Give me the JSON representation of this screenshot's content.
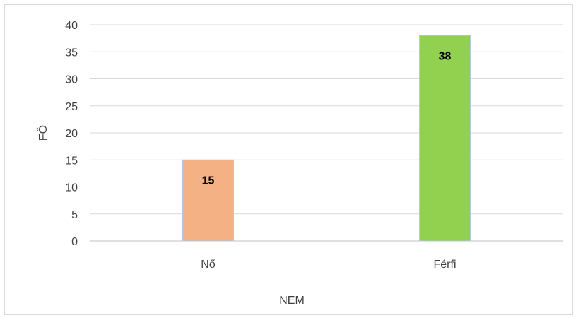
{
  "chart_data": {
    "type": "bar",
    "categories": [
      "Nő",
      "Férfi"
    ],
    "values": [
      15,
      38
    ],
    "colors": [
      "#f4b183",
      "#92d050"
    ],
    "xlabel": "NEM",
    "ylabel": "FŐ",
    "ylim": [
      0,
      40
    ],
    "yticks": [
      0,
      5,
      10,
      15,
      20,
      25,
      30,
      35,
      40
    ],
    "grid": true,
    "legend": "none",
    "data_labels": [
      "15",
      "38"
    ]
  }
}
